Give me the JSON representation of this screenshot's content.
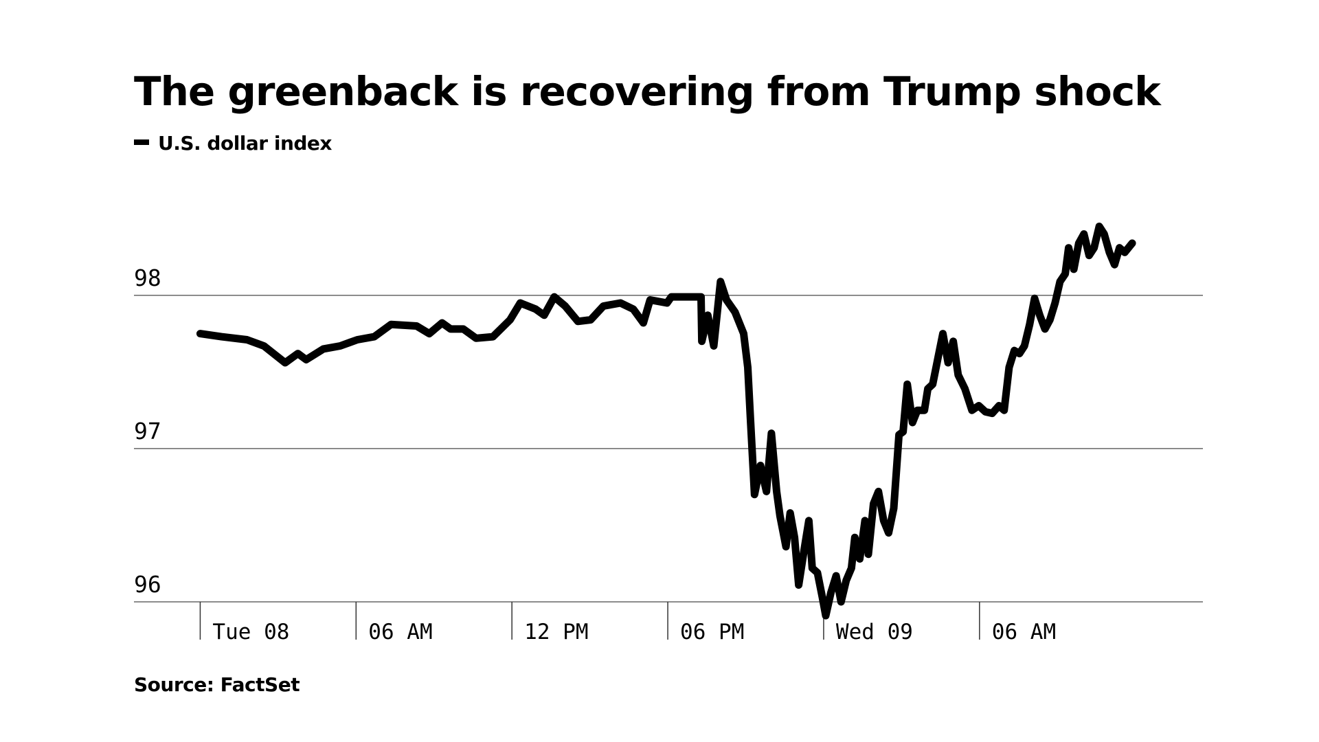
{
  "chart_data": {
    "type": "line",
    "title": "The greenback is recovering from Trump shock",
    "source": "Source: FactSet",
    "x": [
      0.0,
      0.82,
      1.8,
      2.45,
      3.27,
      3.76,
      4.08,
      4.74,
      5.39,
      6.05,
      6.7,
      7.35,
      8.33,
      8.82,
      9.31,
      9.64,
      10.13,
      10.62,
      11.27,
      11.93,
      12.32,
      12.91,
      13.24,
      13.63,
      14.05,
      14.54,
      15.03,
      15.52,
      16.18,
      16.67,
      17.06,
      17.32,
      17.97,
      18.14,
      19.28,
      19.31,
      19.54,
      19.77,
      20.03,
      20.26,
      20.59,
      20.92,
      21.08,
      21.18,
      21.34,
      21.57,
      21.8,
      21.99,
      22.19,
      22.32,
      22.55,
      22.71,
      22.88,
      23.04,
      23.24,
      23.43,
      23.56,
      23.76,
      23.95,
      24.08,
      24.28,
      24.48,
      24.67,
      24.87,
      25.07,
      25.2,
      25.39,
      25.59,
      25.72,
      25.92,
      26.11,
      26.31,
      26.5,
      26.7,
      26.9,
      27.06,
      27.22,
      27.42,
      27.61,
      27.88,
      28.01,
      28.2,
      28.4,
      28.59,
      28.79,
      28.99,
      29.18,
      29.44,
      29.71,
      29.97,
      30.23,
      30.49,
      30.75,
      30.95,
      31.14,
      31.34,
      31.54,
      31.73,
      31.93,
      32.12,
      32.32,
      32.52,
      32.71,
      32.91,
      33.1,
      33.3,
      33.43,
      33.63,
      33.82,
      34.02,
      34.22,
      34.41,
      34.61,
      34.8,
      35.0,
      35.2,
      35.39,
      35.59,
      35.88
    ],
    "series": [
      {
        "name": "U.S. dollar index",
        "color": "#000000",
        "values": [
          97.75,
          97.73,
          97.71,
          97.67,
          97.56,
          97.62,
          97.58,
          97.65,
          97.67,
          97.71,
          97.73,
          97.81,
          97.8,
          97.75,
          97.82,
          97.78,
          97.78,
          97.72,
          97.73,
          97.84,
          97.95,
          97.91,
          97.87,
          97.99,
          97.93,
          97.83,
          97.84,
          97.93,
          97.95,
          97.91,
          97.82,
          97.97,
          97.95,
          97.99,
          97.99,
          97.7,
          97.87,
          97.67,
          98.09,
          97.97,
          97.89,
          97.75,
          97.53,
          97.2,
          96.7,
          96.89,
          96.72,
          97.1,
          96.72,
          96.56,
          96.36,
          96.58,
          96.42,
          96.11,
          96.33,
          96.53,
          96.22,
          96.19,
          96.03,
          95.91,
          96.06,
          96.17,
          96.0,
          96.14,
          96.22,
          96.42,
          96.28,
          96.53,
          96.31,
          96.64,
          96.72,
          96.53,
          96.45,
          96.61,
          97.09,
          97.11,
          97.42,
          97.17,
          97.25,
          97.25,
          97.39,
          97.42,
          97.59,
          97.75,
          97.56,
          97.7,
          97.48,
          97.39,
          97.25,
          97.28,
          97.24,
          97.23,
          97.28,
          97.25,
          97.53,
          97.64,
          97.62,
          97.67,
          97.81,
          97.98,
          97.87,
          97.78,
          97.84,
          97.95,
          98.09,
          98.14,
          98.31,
          98.17,
          98.34,
          98.4,
          98.26,
          98.31,
          98.45,
          98.4,
          98.28,
          98.2,
          98.31,
          98.28,
          98.34
        ]
      }
    ],
    "xlim": [
      -2.55,
      38.6
    ],
    "xticks": [
      {
        "value": 0,
        "label": "Tue 08"
      },
      {
        "value": 6,
        "label": "06 AM"
      },
      {
        "value": 12,
        "label": "12 PM"
      },
      {
        "value": 18,
        "label": "06 PM"
      },
      {
        "value": 24,
        "label": "Wed 09"
      },
      {
        "value": 30,
        "label": "06 AM"
      }
    ],
    "ylim": [
      96,
      98.6
    ],
    "yticks": [
      96,
      97,
      98
    ],
    "grid": true
  }
}
